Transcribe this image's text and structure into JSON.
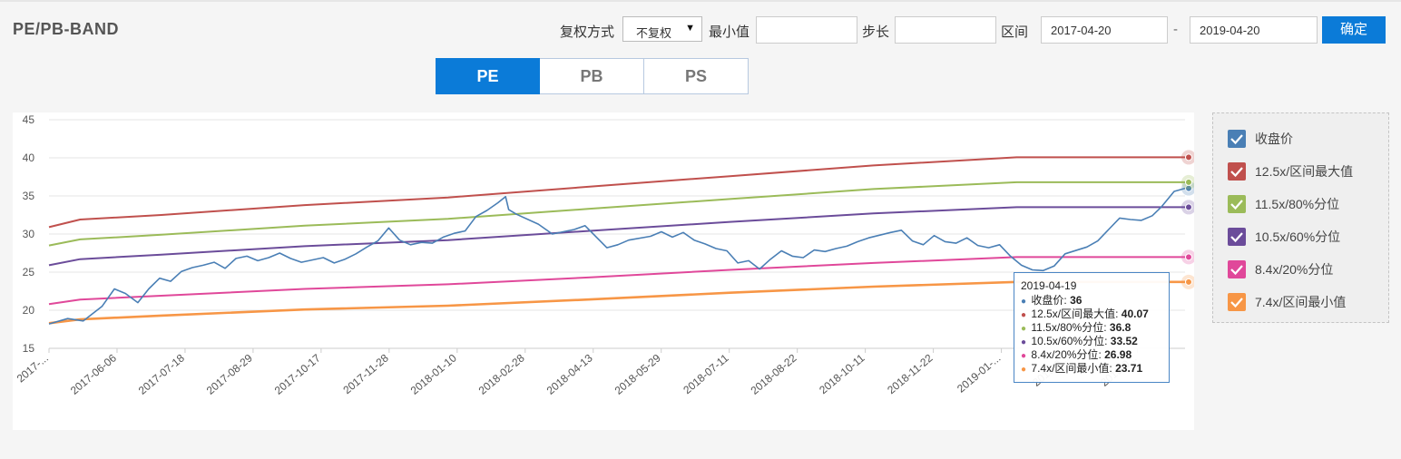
{
  "header": {
    "title": "PE/PB-BAND"
  },
  "controls": {
    "adjust_label": "复权方式",
    "adjust_value": "不复权",
    "min_label": "最小值",
    "min_value": "",
    "step_label": "步长",
    "step_value": "",
    "range_label": "区间",
    "start_date": "2017-04-20",
    "range_sep": "-",
    "end_date": "2019-04-20",
    "confirm_label": "确定"
  },
  "tabs": [
    {
      "label": "PE",
      "active": true
    },
    {
      "label": "PB",
      "active": false
    },
    {
      "label": "PS",
      "active": false
    }
  ],
  "legend": [
    {
      "label": "收盘价",
      "color": "#4a7fb5"
    },
    {
      "label": "12.5x/区间最大值",
      "color": "#c0504d"
    },
    {
      "label": "11.5x/80%分位",
      "color": "#9bbb59"
    },
    {
      "label": "10.5x/60%分位",
      "color": "#6b4c9a"
    },
    {
      "label": "8.4x/20%分位",
      "color": "#e0489a"
    },
    {
      "label": "7.4x/区间最小值",
      "color": "#f79646"
    }
  ],
  "tooltip": {
    "date": "2019-04-19",
    "rows": [
      {
        "label": "收盘价",
        "value": "36",
        "color": "#4a7fb5"
      },
      {
        "label": "12.5x/区间最大值",
        "value": "40.07",
        "color": "#c0504d"
      },
      {
        "label": "11.5x/80%分位",
        "value": "36.8",
        "color": "#9bbb59"
      },
      {
        "label": "10.5x/60%分位",
        "value": "33.52",
        "color": "#6b4c9a"
      },
      {
        "label": "8.4x/20%分位",
        "value": "26.98",
        "color": "#e0489a"
      },
      {
        "label": "7.4x/区间最小值",
        "value": "23.71",
        "color": "#f79646"
      }
    ]
  },
  "chart_data": {
    "type": "line",
    "ylim": [
      15,
      45
    ],
    "yticks": [
      15,
      20,
      25,
      30,
      35,
      40,
      45
    ],
    "xlim": [
      "2017-04-20",
      "2019-04-19"
    ],
    "xtick_labels": [
      "2017-...",
      "2017-06-06",
      "2017-07-18",
      "2017-08-29",
      "2017-10-17",
      "2017-11-28",
      "2018-01-10",
      "2018-02-28",
      "2018-04-13",
      "2018-05-29",
      "2018-07-11",
      "2018-08-22",
      "2018-10-11",
      "2018-11-22",
      "2019-01-...",
      "2019-0...",
      "2019-0..."
    ],
    "grid": true,
    "series": [
      {
        "name": "收盘价",
        "color": "#4a7fb5",
        "width": 1.6,
        "x": [
          "2017-04-20",
          "2017-05-02",
          "2017-05-12",
          "2017-05-24",
          "2017-06-01",
          "2017-06-08",
          "2017-06-16",
          "2017-06-23",
          "2017-06-30",
          "2017-07-07",
          "2017-07-14",
          "2017-07-21",
          "2017-07-28",
          "2017-08-04",
          "2017-08-11",
          "2017-08-18",
          "2017-08-25",
          "2017-09-01",
          "2017-09-08",
          "2017-09-15",
          "2017-09-22",
          "2017-09-29",
          "2017-10-13",
          "2017-10-20",
          "2017-10-27",
          "2017-11-03",
          "2017-11-10",
          "2017-11-17",
          "2017-11-24",
          "2017-12-01",
          "2017-12-08",
          "2017-12-15",
          "2017-12-22",
          "2017-12-29",
          "2018-01-05",
          "2018-01-12",
          "2018-01-19",
          "2018-01-26",
          "2018-02-02",
          "2018-02-07",
          "2018-02-09",
          "2018-02-14",
          "2018-02-28",
          "2018-03-09",
          "2018-03-16",
          "2018-03-23",
          "2018-03-30",
          "2018-04-13",
          "2018-04-20",
          "2018-04-27",
          "2018-05-11",
          "2018-05-18",
          "2018-05-25",
          "2018-06-01",
          "2018-06-08",
          "2018-06-15",
          "2018-06-22",
          "2018-06-29",
          "2018-07-06",
          "2018-07-13",
          "2018-07-20",
          "2018-07-27",
          "2018-08-03",
          "2018-08-10",
          "2018-08-17",
          "2018-08-24",
          "2018-08-31",
          "2018-09-07",
          "2018-09-14",
          "2018-09-21",
          "2018-09-28",
          "2018-10-12",
          "2018-10-19",
          "2018-10-26",
          "2018-11-02",
          "2018-11-09",
          "2018-11-16",
          "2018-11-23",
          "2018-11-30",
          "2018-12-07",
          "2018-12-14",
          "2018-12-21",
          "2018-12-28",
          "2019-01-04",
          "2019-01-11",
          "2019-01-18",
          "2019-01-25",
          "2019-02-01",
          "2019-02-15",
          "2019-02-22",
          "2019-03-01",
          "2019-03-08",
          "2019-03-15",
          "2019-03-22",
          "2019-03-29",
          "2019-04-04",
          "2019-04-12",
          "2019-04-19"
        ],
        "values": [
          18.2,
          18.9,
          18.6,
          20.5,
          22.8,
          22.2,
          21.0,
          22.8,
          24.2,
          23.8,
          25.1,
          25.6,
          25.9,
          26.3,
          25.5,
          26.8,
          27.1,
          26.5,
          26.9,
          27.5,
          26.8,
          26.3,
          26.9,
          26.2,
          26.7,
          27.4,
          28.3,
          29.1,
          30.8,
          29.2,
          28.6,
          28.9,
          28.8,
          29.6,
          30.1,
          30.4,
          32.3,
          33.1,
          34.1,
          34.9,
          33.2,
          32.6,
          31.3,
          30.0,
          30.3,
          30.6,
          31.1,
          28.2,
          28.6,
          29.2,
          29.7,
          30.3,
          29.6,
          30.2,
          29.2,
          28.7,
          28.1,
          27.8,
          26.2,
          26.5,
          25.4,
          26.7,
          27.8,
          27.1,
          26.9,
          27.9,
          27.7,
          28.1,
          28.4,
          29.0,
          29.5,
          30.2,
          30.5,
          29.1,
          28.6,
          29.8,
          29.0,
          28.8,
          29.5,
          28.5,
          28.2,
          28.6,
          27.1,
          25.9,
          25.3,
          25.2,
          25.8,
          27.4,
          28.3,
          29.1,
          30.6,
          32.1,
          31.9,
          31.8,
          32.4,
          33.6,
          35.6,
          36.0
        ]
      },
      {
        "name": "12.5x/区间最大值",
        "color": "#c0504d",
        "width": 2,
        "x": [
          "2017-04-20",
          "2017-05-10",
          "2017-07-01",
          "2017-10-01",
          "2018-01-01",
          "2018-04-01",
          "2018-07-01",
          "2018-10-01",
          "2019-01-01",
          "2019-04-19"
        ],
        "values": [
          30.9,
          31.9,
          32.5,
          33.8,
          34.8,
          36.2,
          37.6,
          39.0,
          40.07,
          40.07
        ]
      },
      {
        "name": "11.5x/80%分位",
        "color": "#9bbb59",
        "width": 2,
        "x": [
          "2017-04-20",
          "2017-05-10",
          "2017-07-01",
          "2017-10-01",
          "2018-01-01",
          "2018-04-01",
          "2018-07-01",
          "2018-10-01",
          "2019-01-01",
          "2019-04-19"
        ],
        "values": [
          28.5,
          29.3,
          29.9,
          31.1,
          32.0,
          33.3,
          34.6,
          35.9,
          36.8,
          36.8
        ]
      },
      {
        "name": "10.5x/60%分位",
        "color": "#6b4c9a",
        "width": 2,
        "x": [
          "2017-04-20",
          "2017-05-10",
          "2017-07-01",
          "2017-10-01",
          "2018-01-01",
          "2018-04-01",
          "2018-07-01",
          "2018-10-01",
          "2019-01-01",
          "2019-04-19"
        ],
        "values": [
          25.9,
          26.7,
          27.3,
          28.4,
          29.2,
          30.4,
          31.6,
          32.7,
          33.52,
          33.52
        ]
      },
      {
        "name": "8.4x/20%分位",
        "color": "#e0489a",
        "width": 2,
        "x": [
          "2017-04-20",
          "2017-05-10",
          "2017-07-01",
          "2017-10-01",
          "2018-01-01",
          "2018-04-01",
          "2018-07-01",
          "2018-10-01",
          "2019-01-01",
          "2019-04-19"
        ],
        "values": [
          20.8,
          21.4,
          21.9,
          22.8,
          23.4,
          24.3,
          25.3,
          26.2,
          26.98,
          26.98
        ]
      },
      {
        "name": "7.4x/区间最小值",
        "color": "#f79646",
        "width": 2.6,
        "x": [
          "2017-04-20",
          "2017-05-10",
          "2017-07-01",
          "2017-10-01",
          "2018-01-01",
          "2018-04-01",
          "2018-07-01",
          "2018-10-01",
          "2019-01-01",
          "2019-04-19"
        ],
        "values": [
          18.3,
          18.8,
          19.3,
          20.1,
          20.6,
          21.4,
          22.3,
          23.1,
          23.71,
          23.71
        ]
      }
    ]
  }
}
